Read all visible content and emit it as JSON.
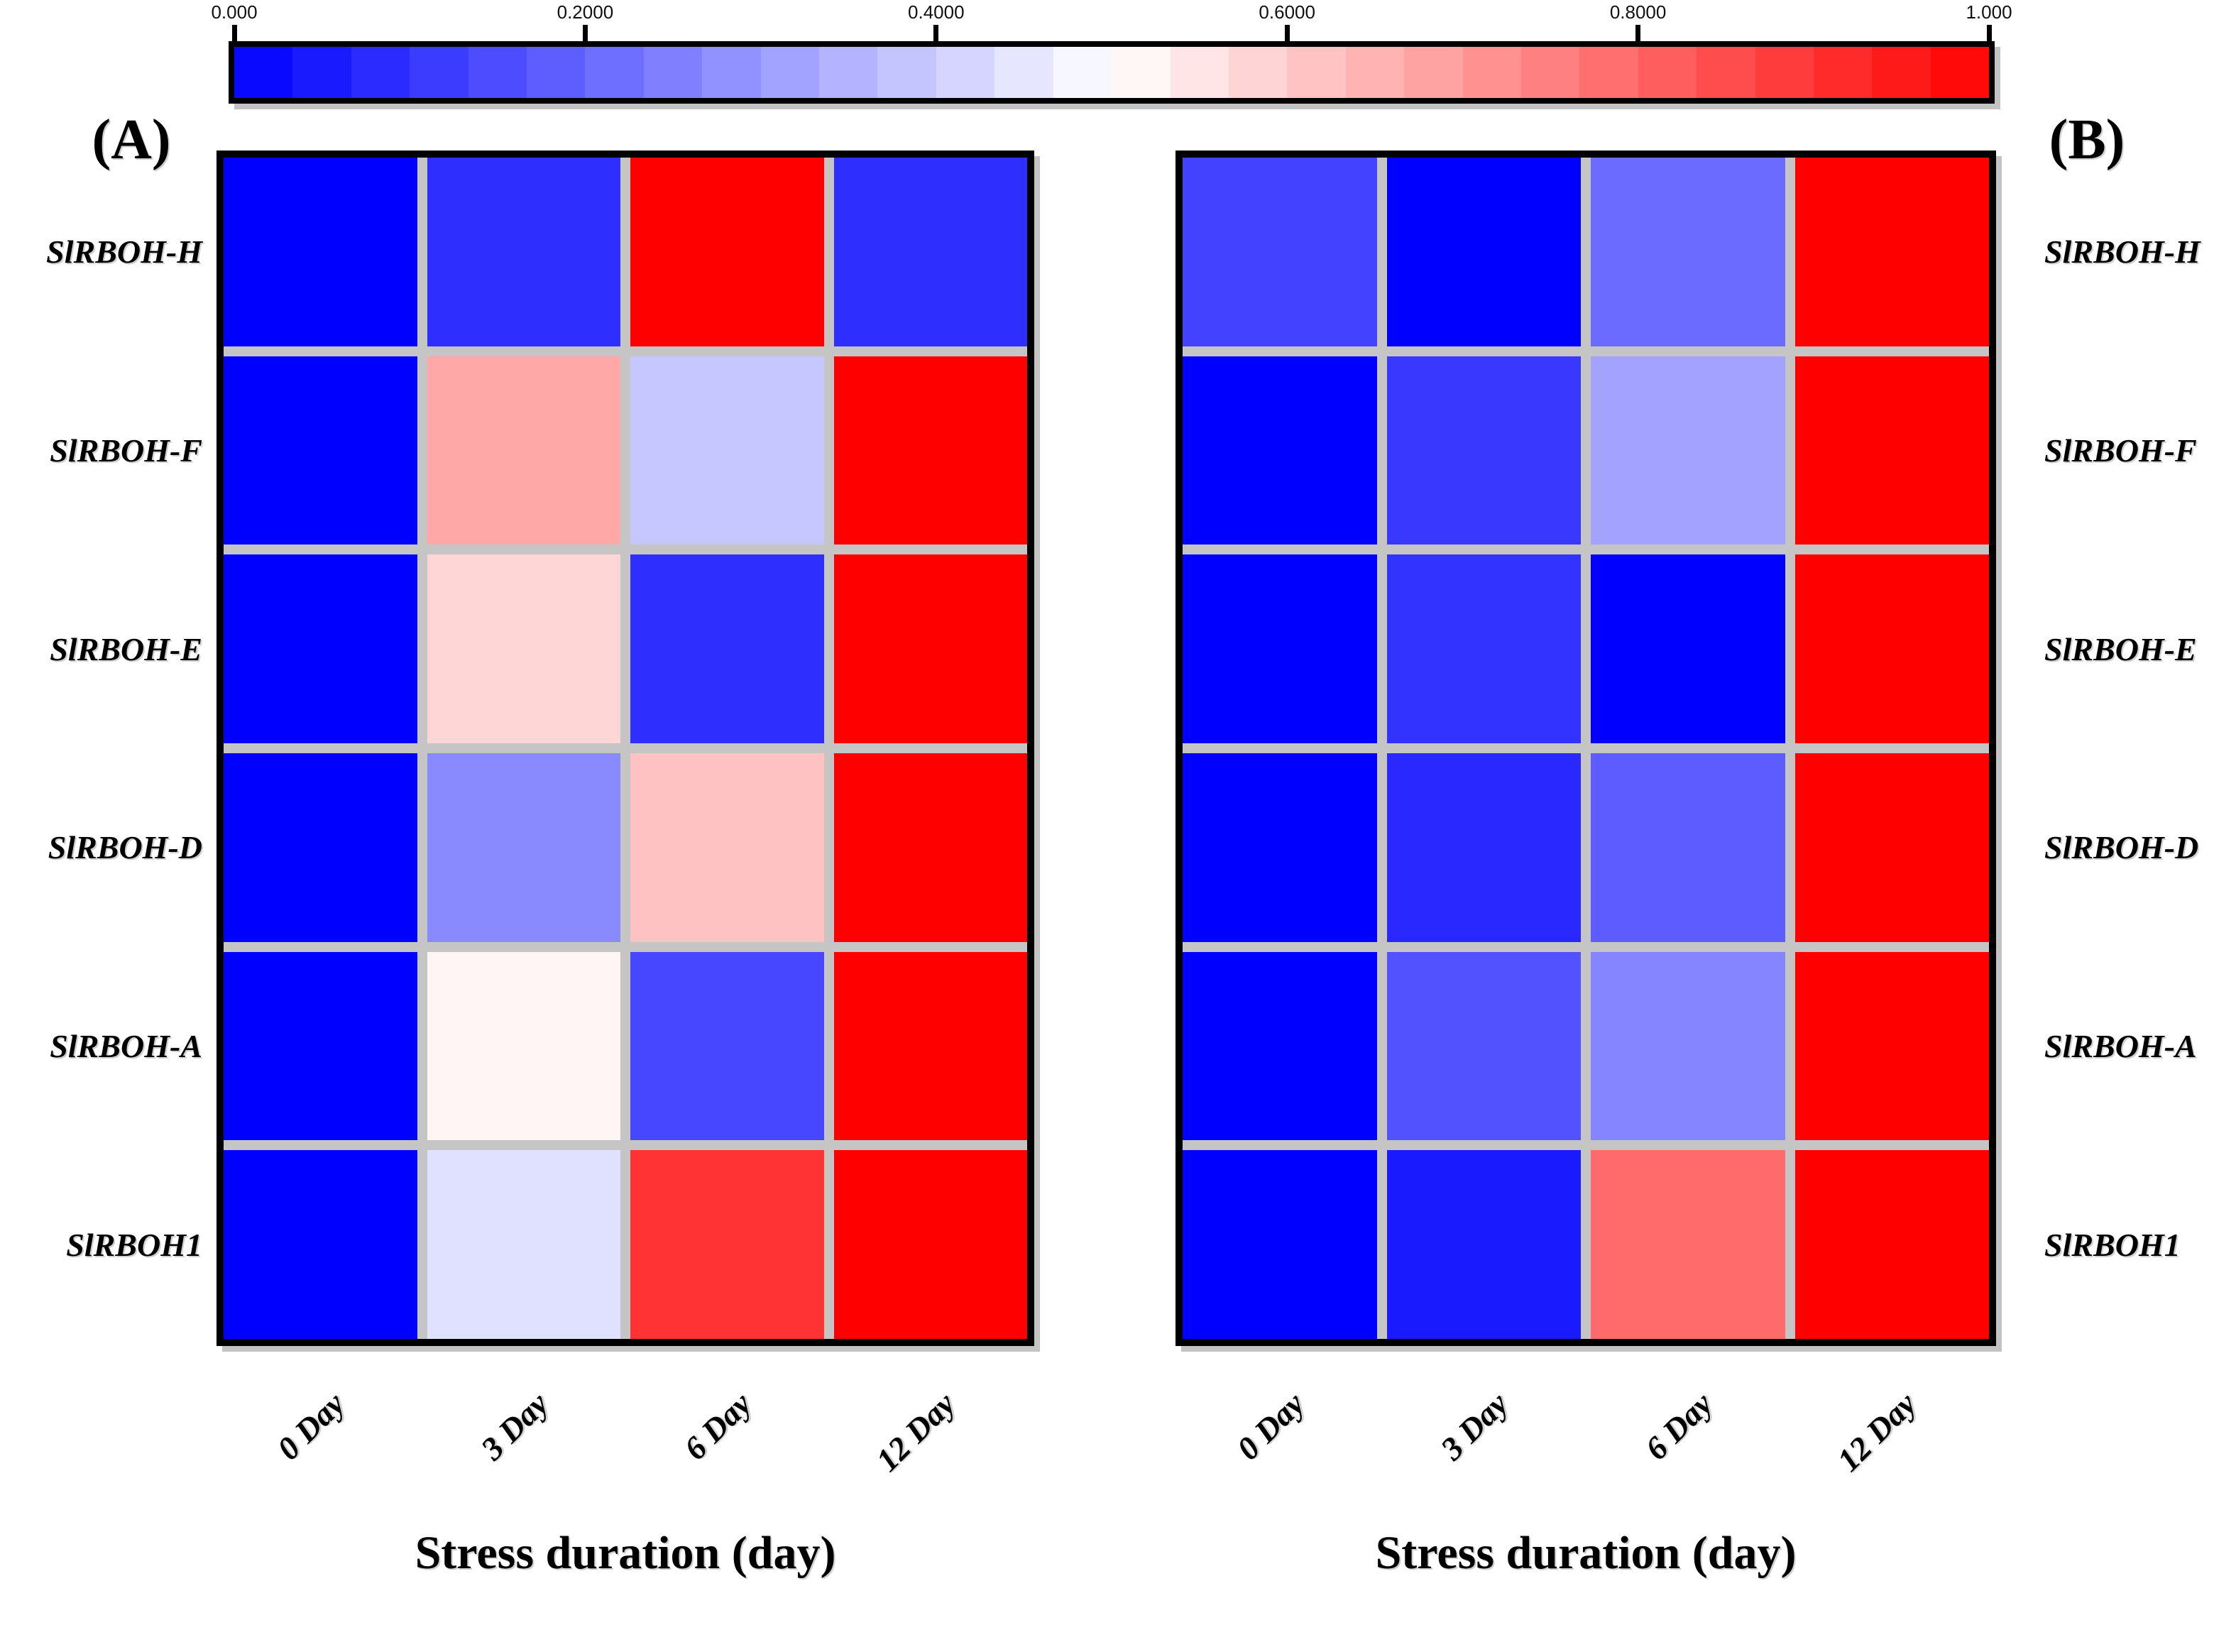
{
  "chart_data": [
    {
      "type": "heatmap",
      "id": "A",
      "panel_label": "(A)",
      "xlabel": "Stress duration (day)",
      "categories": [
        "0 Day",
        "3 Day",
        "6 Day",
        "12 Day"
      ],
      "rows": [
        "SlRBOH-H",
        "SlRBOH-F",
        "SlRBOH-E",
        "SlRBOH-D",
        "SlRBOH-A",
        "SlRBOH1"
      ],
      "row_label_side": "left",
      "value_range": [
        0,
        1
      ],
      "values": [
        [
          0.0,
          0.09,
          1.0,
          0.09
        ],
        [
          0.0,
          0.67,
          0.39,
          1.0
        ],
        [
          0.0,
          0.58,
          0.09,
          1.0
        ],
        [
          0.0,
          0.27,
          0.62,
          1.0
        ],
        [
          0.0,
          0.52,
          0.14,
          1.0
        ],
        [
          0.0,
          0.44,
          0.9,
          1.0
        ]
      ]
    },
    {
      "type": "heatmap",
      "id": "B",
      "panel_label": "(B)",
      "xlabel": "Stress duration (day)",
      "categories": [
        "0 Day",
        "3 Day",
        "6 Day",
        "12 Day"
      ],
      "rows": [
        "SlRBOH-H",
        "SlRBOH-F",
        "SlRBOH-E",
        "SlRBOH-D",
        "SlRBOH-A",
        "SlRBOH1"
      ],
      "row_label_side": "right",
      "value_range": [
        0,
        1
      ],
      "values": [
        [
          0.13,
          0.0,
          0.21,
          1.0
        ],
        [
          0.0,
          0.11,
          0.32,
          1.0
        ],
        [
          0.0,
          0.1,
          0.0,
          1.0
        ],
        [
          0.0,
          0.08,
          0.18,
          1.0
        ],
        [
          0.0,
          0.16,
          0.26,
          1.0
        ],
        [
          0.0,
          0.05,
          0.79,
          1.0
        ]
      ]
    }
  ],
  "colorbar": {
    "min": 0,
    "max": 1,
    "segments": 30,
    "colormap": "blue-white-red",
    "color_min": "#0000FF",
    "color_mid": "#FFFFFF",
    "color_max": "#FF0000",
    "tick_values": [
      0,
      0.2,
      0.4,
      0.6,
      0.8,
      1
    ],
    "tick_labels": [
      "0.000",
      "0.2000",
      "0.4000",
      "0.6000",
      "0.8000",
      "1.000"
    ]
  },
  "styles": {
    "cell_gap_color": "#C5C5C5",
    "panel_border_color": "#000000",
    "background": "#FFFFFF"
  }
}
